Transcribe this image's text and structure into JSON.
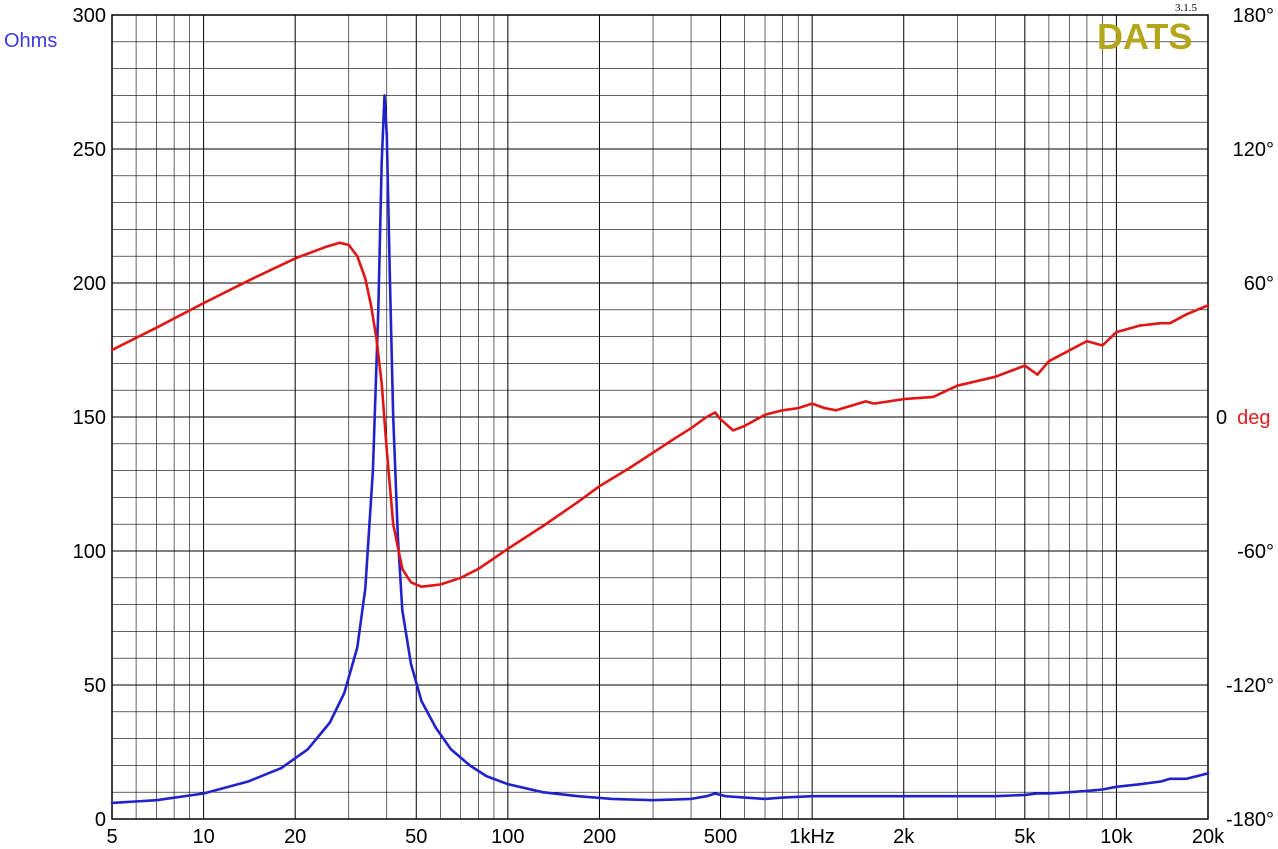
{
  "chart_data": {
    "type": "line",
    "brand": "DATS",
    "version": "3.1.5",
    "y_left_unit": "Ohms",
    "y_right_unit_value": "0",
    "y_right_unit_word": "deg",
    "x_scale": "log",
    "xlim": [
      5,
      20000
    ],
    "ylim_left": [
      0,
      300
    ],
    "ylim_right": [
      -180,
      180
    ],
    "grid": true,
    "x_ticks": [
      {
        "value": 5,
        "label": "5"
      },
      {
        "value": 10,
        "label": "10"
      },
      {
        "value": 20,
        "label": "20"
      },
      {
        "value": 50,
        "label": "50"
      },
      {
        "value": 100,
        "label": "100"
      },
      {
        "value": 200,
        "label": "200"
      },
      {
        "value": 500,
        "label": "500"
      },
      {
        "value": 1000,
        "label": "1kHz"
      },
      {
        "value": 2000,
        "label": "2k"
      },
      {
        "value": 5000,
        "label": "5k"
      },
      {
        "value": 10000,
        "label": "10k"
      },
      {
        "value": 20000,
        "label": "20k"
      }
    ],
    "y_left_ticks": [
      {
        "value": 0,
        "label": "0"
      },
      {
        "value": 50,
        "label": "50"
      },
      {
        "value": 100,
        "label": "100"
      },
      {
        "value": 150,
        "label": "150"
      },
      {
        "value": 200,
        "label": "200"
      },
      {
        "value": 250,
        "label": "250"
      },
      {
        "value": 300,
        "label": "300"
      }
    ],
    "y_right_ticks": [
      {
        "value": -180,
        "label": "-180°"
      },
      {
        "value": -120,
        "label": "-120°"
      },
      {
        "value": -60,
        "label": "-60°"
      },
      {
        "value": 60,
        "label": "60°"
      },
      {
        "value": 120,
        "label": "120°"
      },
      {
        "value": 180,
        "label": "180°"
      }
    ],
    "series": [
      {
        "axis": "left",
        "color": "#2222cc",
        "x": [
          5,
          7,
          10,
          14,
          18,
          22,
          26,
          29,
          32,
          34,
          36,
          37.5,
          38.5,
          39.3,
          40,
          41,
          42,
          43.5,
          45,
          48,
          52,
          58,
          65,
          75,
          85,
          100,
          130,
          170,
          220,
          300,
          400,
          450,
          480,
          520,
          600,
          700,
          800,
          1000,
          1200,
          1500,
          2000,
          3000,
          4000,
          5000,
          5500,
          6000,
          7000,
          8000,
          9000,
          10000,
          12000,
          14000,
          15000,
          17000,
          20000
        ],
        "y": [
          6,
          7,
          9.5,
          14,
          19,
          26,
          36,
          47,
          64,
          86,
          130,
          190,
          245,
          270,
          255,
          200,
          150,
          105,
          78,
          58,
          44,
          34,
          26,
          20,
          16,
          13,
          10,
          8.5,
          7.5,
          7,
          7.5,
          8.5,
          9.5,
          8.5,
          8,
          7.5,
          8,
          8.5,
          8.5,
          8.5,
          8.5,
          8.5,
          8.5,
          9,
          9.5,
          9.5,
          10,
          10.5,
          11,
          12,
          13,
          14,
          15,
          15,
          17
        ]
      },
      {
        "axis": "right",
        "color": "#e01515",
        "x": [
          5,
          7,
          10,
          14,
          20,
          25,
          28,
          30,
          32,
          34,
          35.5,
          37,
          38.5,
          40,
          42,
          45,
          48,
          52,
          56,
          60,
          70,
          80,
          100,
          130,
          170,
          200,
          250,
          300,
          350,
          400,
          450,
          480,
          500,
          550,
          600,
          700,
          800,
          900,
          1000,
          1100,
          1200,
          1500,
          1600,
          2000,
          2500,
          3000,
          4000,
          5000,
          5500,
          6000,
          8000,
          9000,
          10000,
          12000,
          14000,
          15000,
          17000,
          20000
        ],
        "y": [
          30,
          40,
          51,
          61,
          71,
          76,
          78,
          77,
          72,
          62,
          50,
          35,
          15,
          -15,
          -48,
          -68,
          -74,
          -76,
          -75.5,
          -75,
          -72,
          -68,
          -59,
          -49,
          -38,
          -31,
          -23,
          -16,
          -10,
          -5,
          0,
          2,
          -1,
          -6,
          -4,
          1,
          3,
          4,
          6,
          4,
          3,
          7,
          6,
          8,
          9,
          14,
          18,
          23,
          19,
          25,
          34,
          32,
          38,
          41,
          42,
          42,
          46,
          50
        ]
      }
    ]
  }
}
